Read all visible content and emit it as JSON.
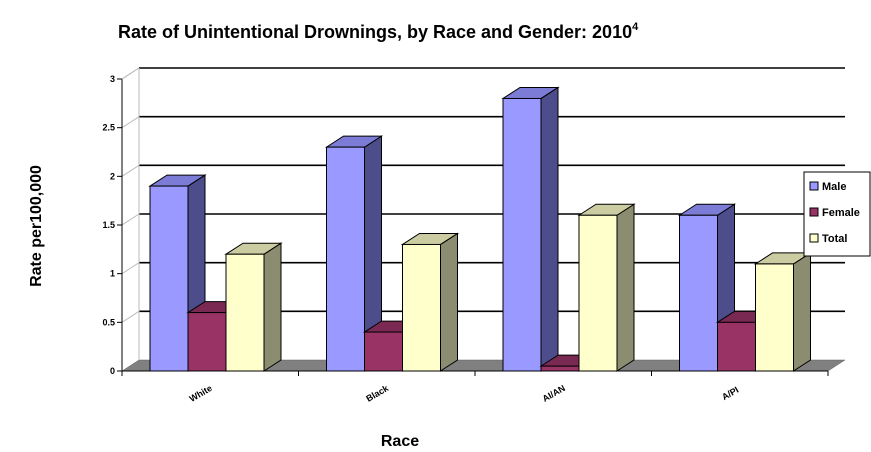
{
  "chart_data": {
    "type": "bar",
    "title": "Rate of Unintentional Drownings, by Race and Gender: 2010",
    "title_superscript": "4",
    "xlabel": "Race",
    "ylabel": "Rate per100,000",
    "categories": [
      "White",
      "Black",
      "AI/AN",
      "A/PI"
    ],
    "series": [
      {
        "name": "Male",
        "values": [
          1.9,
          2.3,
          2.8,
          1.6
        ],
        "color": "#9999ff",
        "side_color": "#4d4d8c",
        "top_color": "#7c7cd6"
      },
      {
        "name": "Female",
        "values": [
          0.6,
          0.4,
          0.05,
          0.5
        ],
        "color": "#993366",
        "side_color": "#5c1f3d",
        "top_color": "#7a2952"
      },
      {
        "name": "Total",
        "values": [
          1.2,
          1.3,
          1.6,
          1.1
        ],
        "color": "#ffffcc",
        "side_color": "#8c8c70",
        "top_color": "#cccca3"
      }
    ],
    "ylim": [
      0,
      3
    ],
    "yticks": [
      "0",
      "0.5",
      "1",
      "1.5",
      "2",
      "2.5",
      "3"
    ],
    "grid": true,
    "legend_position": "right",
    "floor_color": "#808080"
  }
}
